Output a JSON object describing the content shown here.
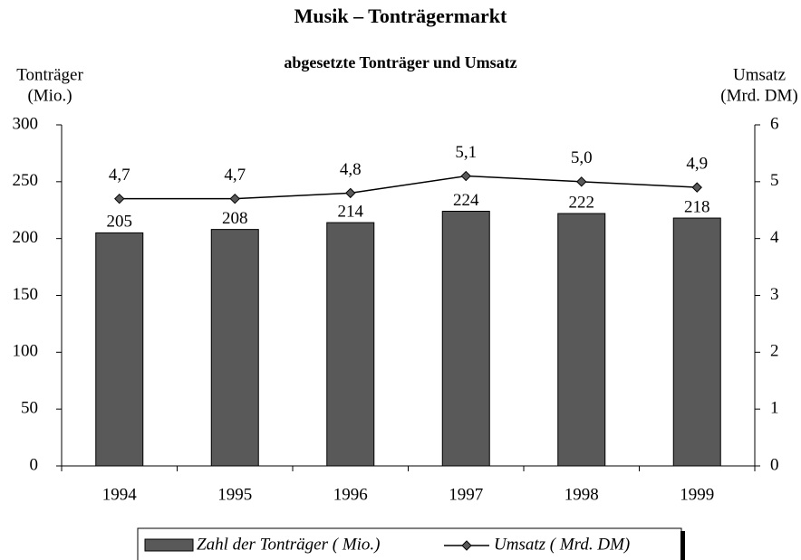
{
  "chart_data": {
    "type": "bar",
    "title": "Musik – Tonträgermarkt",
    "subtitle": "abgesetzte Tonträger und Umsatz",
    "y_label": [
      "Tonträger",
      "(Mio.)"
    ],
    "y2_label": [
      "Umsatz",
      "(Mrd. DM)"
    ],
    "categories": [
      "1994",
      "1995",
      "1996",
      "1997",
      "1998",
      "1999"
    ],
    "series": [
      {
        "name": "Zahl der Tonträger ( Mio.)",
        "type": "bar",
        "color": "#595959",
        "values": [
          205,
          208,
          214,
          224,
          222,
          218
        ]
      },
      {
        "name": "Umsatz ( Mrd. DM)",
        "type": "line",
        "axis": "y2",
        "color": "#000000",
        "marker_color": "#595959",
        "values": [
          4.7,
          4.7,
          4.8,
          5.1,
          5.0,
          4.9
        ],
        "value_labels": [
          "4,7",
          "4,7",
          "4,8",
          "5,1",
          "5,0",
          "4,9"
        ]
      }
    ],
    "ylim": [
      0,
      300
    ],
    "yticks": [
      0,
      50,
      100,
      150,
      200,
      250,
      300
    ],
    "y2lim": [
      0,
      6
    ],
    "y2ticks": [
      0,
      1,
      2,
      3,
      4,
      5,
      6
    ],
    "grid": false,
    "legend": "bottom"
  }
}
